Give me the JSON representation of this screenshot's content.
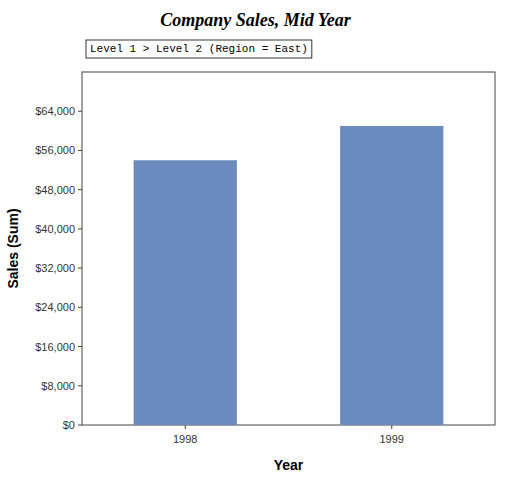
{
  "chart_data": {
    "type": "bar",
    "title": "Company Sales, Mid Year",
    "annotations": [
      "Level 1 > Level 2 (Region = East)"
    ],
    "xlabel": "Year",
    "ylabel": "Sales (Sum)",
    "categories": [
      "1998",
      "1999"
    ],
    "values": [
      54000,
      61000
    ],
    "color": "#6B8BBE",
    "ylim": [
      0,
      72000
    ],
    "yticks": [
      {
        "value": 0,
        "label": "$0"
      },
      {
        "value": 8000,
        "label": "$8,000"
      },
      {
        "value": 16000,
        "label": "$16,000"
      },
      {
        "value": 24000,
        "label": "$24,000"
      },
      {
        "value": 32000,
        "label": "$32,000"
      },
      {
        "value": 40000,
        "label": "$40,000"
      },
      {
        "value": 48000,
        "label": "$48,000"
      },
      {
        "value": 56000,
        "label": "$56,000"
      },
      {
        "value": 64000,
        "label": "$64,000"
      }
    ],
    "grid": false
  }
}
